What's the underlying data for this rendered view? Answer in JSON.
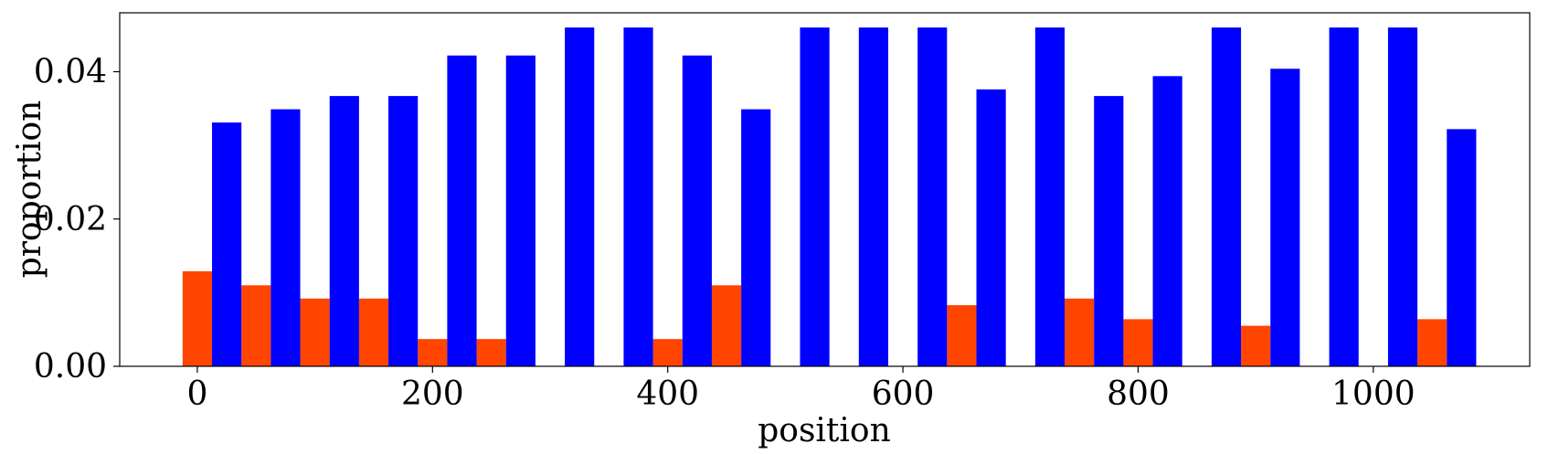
{
  "chart_data": {
    "type": "bar",
    "xlabel": "position",
    "ylabel": "proportion",
    "xlim": [
      -66,
      1133
    ],
    "ylim": [
      0,
      0.048
    ],
    "xticks": [
      0,
      200,
      400,
      600,
      800,
      1000
    ],
    "xtick_labels": [
      "0",
      "200",
      "400",
      "600",
      "800",
      "1000"
    ],
    "yticks": [
      0,
      0.02,
      0.04
    ],
    "ytick_labels": [
      "0.00",
      "0.02",
      "0.04"
    ],
    "grid": false,
    "bar_width": 25,
    "x": [
      0,
      50,
      100,
      150,
      200,
      250,
      300,
      350,
      400,
      450,
      500,
      550,
      600,
      650,
      700,
      750,
      800,
      850,
      900,
      950,
      1000,
      1050
    ],
    "series": [
      {
        "color": "#ff4500",
        "offset": 0,
        "values": [
          0.0129,
          0.011,
          0.0092,
          0.0092,
          0.0037,
          0.0037,
          0,
          0,
          0.0037,
          0.011,
          0,
          0,
          0,
          0.0083,
          0,
          0.0092,
          0.0064,
          0,
          0.0055,
          0,
          0,
          0.0064
        ]
      },
      {
        "color": "#0000ff",
        "offset": 25,
        "values": [
          0.0331,
          0.0349,
          0.0367,
          0.0367,
          0.0422,
          0.0422,
          0.046,
          0.046,
          0.0422,
          0.0349,
          0.046,
          0.046,
          0.046,
          0.0376,
          0.046,
          0.0367,
          0.0394,
          0.046,
          0.0404,
          0.046,
          0.046,
          0.0322
        ]
      }
    ]
  }
}
